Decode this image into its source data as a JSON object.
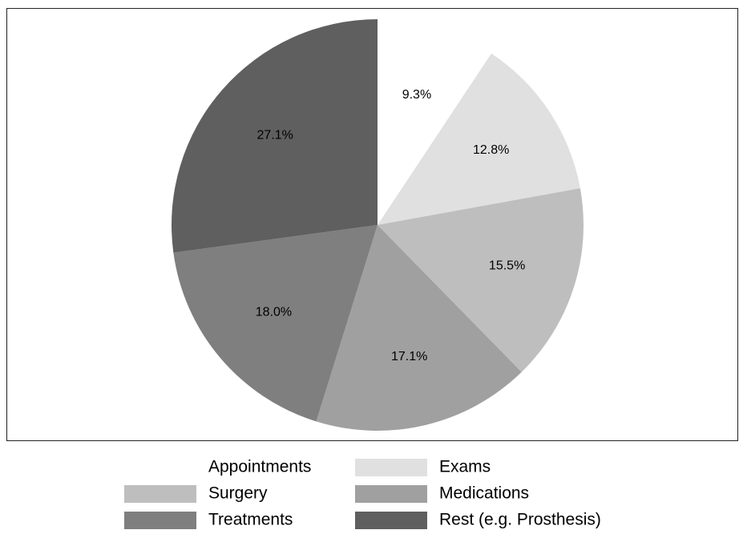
{
  "chart_data": {
    "type": "pie",
    "categories": [
      "Appointments",
      "Exams",
      "Surgery",
      "Medications",
      "Treatments",
      "Rest (e.g. Prosthesis)"
    ],
    "values": [
      9.3,
      12.8,
      15.5,
      17.1,
      18.0,
      27.1
    ],
    "value_labels": [
      "9.3%",
      "12.8%",
      "15.5%",
      "17.1%",
      "18.0%",
      "27.1%"
    ],
    "colors": [
      "#ffffff",
      "#e0e0e0",
      "#bebebe",
      "#a0a0a0",
      "#7f7f7f",
      "#5f5f5f"
    ],
    "legend": "bottom"
  }
}
